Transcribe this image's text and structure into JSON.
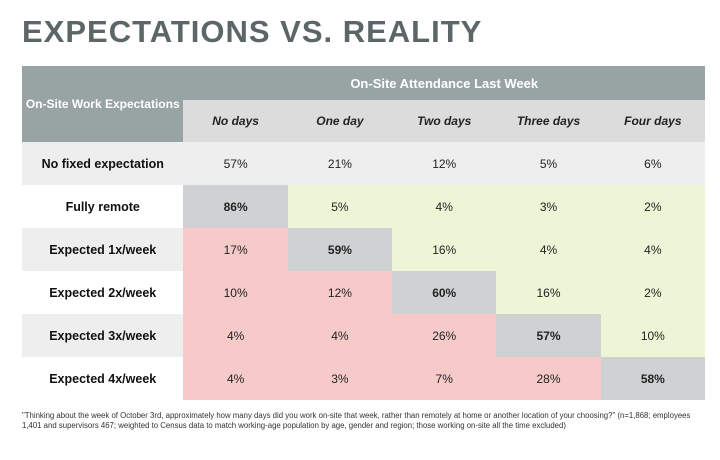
{
  "title": "EXPECTATIONS VS. REALITY",
  "chart_data": {
    "type": "table",
    "corner_label": "On-Site Work Expectations",
    "column_group_label": "On-Site Attendance Last Week",
    "columns": [
      "No days",
      "One day",
      "Two days",
      "Three days",
      "Four days"
    ],
    "rows": [
      {
        "label": "No fixed expectation",
        "values": [
          "57%",
          "21%",
          "12%",
          "5%",
          "6%"
        ],
        "bold_index": -1
      },
      {
        "label": "Fully remote",
        "values": [
          "86%",
          "5%",
          "4%",
          "3%",
          "2%"
        ],
        "bold_index": 0
      },
      {
        "label": "Expected 1x/week",
        "values": [
          "17%",
          "59%",
          "16%",
          "4%",
          "4%"
        ],
        "bold_index": 1
      },
      {
        "label": "Expected 2x/week",
        "values": [
          "10%",
          "12%",
          "60%",
          "16%",
          "2%"
        ],
        "bold_index": 2
      },
      {
        "label": "Expected 3x/week",
        "values": [
          "4%",
          "4%",
          "26%",
          "57%",
          "10%"
        ],
        "bold_index": 3
      },
      {
        "label": "Expected 4x/week",
        "values": [
          "4%",
          "3%",
          "7%",
          "28%",
          "58%"
        ],
        "bold_index": 4
      }
    ],
    "colors": {
      "header": "#98a3a4",
      "subheader": "#dcdcdc",
      "match": "#cfd2d3",
      "below_expectation": "#f7caca",
      "above_expectation": "#edf5d6",
      "neutral_stripe": "#eeeeee",
      "neutral_plain": "#ffffff"
    }
  },
  "footnote": "\"Thinking about the week of October 3rd, approximately how many days did you work on-site that week, rather than remotely at home or another location of your choosing?\" (n=1,868; employees 1,401 and supervisors 467; weighted to Census data to match working-age population by age, gender and region; those working on-site all the time excluded)"
}
